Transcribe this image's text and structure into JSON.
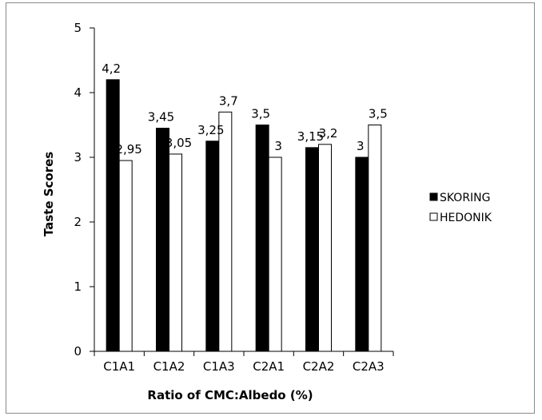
{
  "chart_data": {
    "type": "bar",
    "title": "",
    "xlabel": "Ratio of CMC:Albedo (%)",
    "ylabel": "Taste Scores",
    "categories": [
      "C1A1",
      "C1A2",
      "C1A3",
      "C2A1",
      "C2A2",
      "C2A3"
    ],
    "series": [
      {
        "name": "SKORING",
        "color": "#000000",
        "values": [
          4.2,
          3.45,
          3.25,
          3.5,
          3.15,
          3
        ],
        "labels": [
          "4,2",
          "3,45",
          "3,25",
          "3,5",
          "3,15",
          "3"
        ]
      },
      {
        "name": "HEDONIK",
        "color": "#ffffff",
        "values": [
          2.95,
          3.05,
          3.7,
          3,
          3.2,
          3.5
        ],
        "labels": [
          "2,95",
          "3,05",
          "3,7",
          "3",
          "3,2",
          "3,5"
        ]
      }
    ],
    "ylim": [
      0,
      5
    ],
    "yticks": [
      0,
      1,
      2,
      3,
      4,
      5
    ],
    "grid": false,
    "legend_position": "right"
  }
}
